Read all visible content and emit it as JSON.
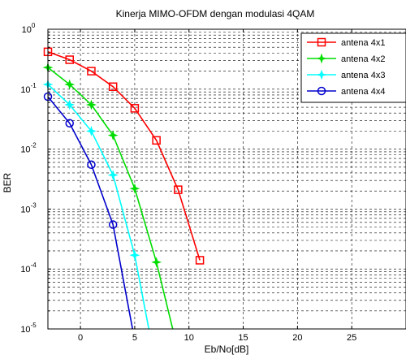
{
  "chart_data": {
    "type": "line",
    "title": "Kinerja MIMO-OFDM dengan modulasi 4QAM",
    "xlabel": "Eb/No[dB]",
    "ylabel": "BER",
    "xlim": [
      -3,
      30
    ],
    "ylim": [
      1e-05,
      1
    ],
    "yscale": "log",
    "grid": true,
    "legend_position": "top-right",
    "x_ticks": [
      {
        "value": 0,
        "label": "0"
      },
      {
        "value": 5,
        "label": "5"
      },
      {
        "value": 10,
        "label": "10"
      },
      {
        "value": 15,
        "label": "15"
      },
      {
        "value": 20,
        "label": "20"
      },
      {
        "value": 25,
        "label": "25"
      }
    ],
    "y_ticks": [
      {
        "value": 1,
        "base": "10",
        "exp": "0"
      },
      {
        "value": 0.1,
        "base": "10",
        "exp": "-1"
      },
      {
        "value": 0.01,
        "base": "10",
        "exp": "-2"
      },
      {
        "value": 0.001,
        "base": "10",
        "exp": "-3"
      },
      {
        "value": 0.0001,
        "base": "10",
        "exp": "-4"
      },
      {
        "value": 1e-05,
        "base": "10",
        "exp": "-5"
      }
    ],
    "series": [
      {
        "name": "antena 4x1",
        "color": "#ff0000",
        "marker": "square",
        "x": [
          -3,
          -1,
          1,
          3,
          5,
          7,
          9,
          11
        ],
        "y": [
          0.42,
          0.31,
          0.2,
          0.11,
          0.048,
          0.014,
          0.0021,
          0.00014
        ]
      },
      {
        "name": "antena 4x2",
        "color": "#00dd00",
        "marker": "star",
        "x": [
          -3,
          -1,
          1,
          3,
          5,
          7,
          8.5
        ],
        "y": [
          0.23,
          0.12,
          0.055,
          0.017,
          0.0022,
          0.00013,
          1e-05
        ]
      },
      {
        "name": "antena 4x3",
        "color": "#00ffff",
        "marker": "star",
        "x": [
          -3,
          -1,
          1,
          3,
          5,
          6.3
        ],
        "y": [
          0.12,
          0.055,
          0.02,
          0.0037,
          0.00017,
          1e-05
        ]
      },
      {
        "name": "antena 4x4",
        "color": "#0000cc",
        "marker": "circle",
        "x": [
          -3,
          -1,
          1,
          3,
          4.8
        ],
        "y": [
          0.075,
          0.027,
          0.0055,
          0.00055,
          1e-05
        ]
      }
    ]
  }
}
